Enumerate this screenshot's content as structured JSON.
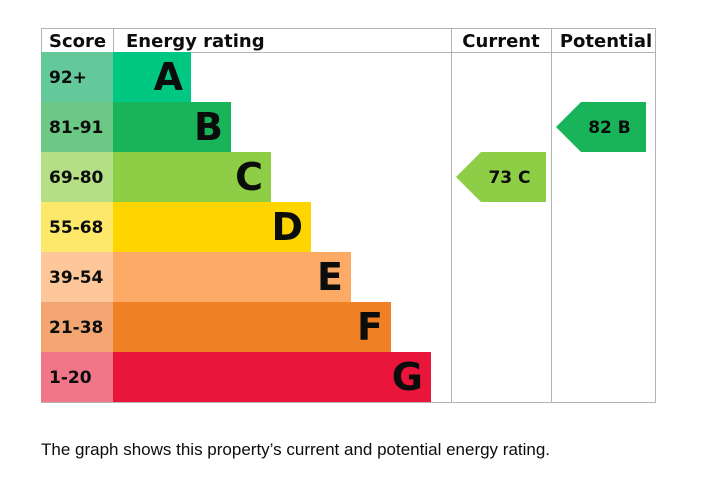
{
  "chart_data": {
    "type": "bar",
    "headers": {
      "score": "Score",
      "rating": "Energy rating",
      "current": "Current",
      "potential": "Potential"
    },
    "bands": [
      {
        "score": "92+",
        "letter": "A",
        "score_color": "#63c89a",
        "bar_color": "#00c781"
      },
      {
        "score": "81-91",
        "letter": "B",
        "score_color": "#6cc985",
        "bar_color": "#19b459"
      },
      {
        "score": "69-80",
        "letter": "C",
        "score_color": "#b5df84",
        "bar_color": "#8dce46"
      },
      {
        "score": "55-68",
        "letter": "D",
        "score_color": "#fde86a",
        "bar_color": "#ffd500"
      },
      {
        "score": "39-54",
        "letter": "E",
        "score_color": "#fdc79a",
        "bar_color": "#fcaa65"
      },
      {
        "score": "21-38",
        "letter": "F",
        "score_color": "#f3a671",
        "bar_color": "#ef8023"
      },
      {
        "score": "1-20",
        "letter": "G",
        "score_color": "#f17688",
        "bar_color": "#e9153b"
      }
    ],
    "current": {
      "value": 73,
      "letter": "C",
      "color": "#8dce46"
    },
    "potential": {
      "value": 82,
      "letter": "B",
      "color": "#19b459"
    }
  },
  "caption": "The graph shows this property’s current and potential energy rating."
}
